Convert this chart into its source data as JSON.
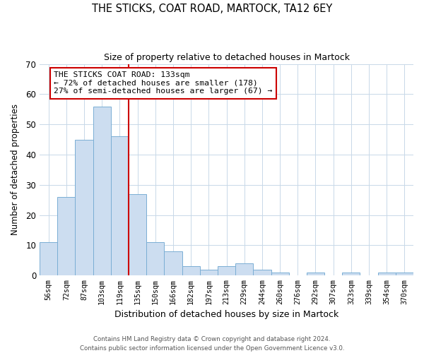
{
  "title": "THE STICKS, COAT ROAD, MARTOCK, TA12 6EY",
  "subtitle": "Size of property relative to detached houses in Martock",
  "xlabel": "Distribution of detached houses by size in Martock",
  "ylabel": "Number of detached properties",
  "bar_labels": [
    "56sqm",
    "72sqm",
    "87sqm",
    "103sqm",
    "119sqm",
    "135sqm",
    "150sqm",
    "166sqm",
    "182sqm",
    "197sqm",
    "213sqm",
    "229sqm",
    "244sqm",
    "260sqm",
    "276sqm",
    "292sqm",
    "307sqm",
    "323sqm",
    "339sqm",
    "354sqm",
    "370sqm"
  ],
  "bar_values": [
    11,
    26,
    45,
    56,
    46,
    27,
    11,
    8,
    3,
    2,
    3,
    4,
    2,
    1,
    0,
    1,
    0,
    1,
    0,
    1,
    1
  ],
  "bar_color": "#ccddf0",
  "bar_edge_color": "#7aaed4",
  "vline_index": 5,
  "vline_color": "#cc0000",
  "ylim": [
    0,
    70
  ],
  "yticks": [
    0,
    10,
    20,
    30,
    40,
    50,
    60,
    70
  ],
  "annotation_title": "THE STICKS COAT ROAD: 133sqm",
  "annotation_line1": "← 72% of detached houses are smaller (178)",
  "annotation_line2": "27% of semi-detached houses are larger (67) →",
  "annotation_box_color": "#ffffff",
  "annotation_box_edge": "#cc0000",
  "footer_line1": "Contains HM Land Registry data © Crown copyright and database right 2024.",
  "footer_line2": "Contains public sector information licensed under the Open Government Licence v3.0.",
  "background_color": "#ffffff",
  "grid_color": "#c8d8e8"
}
